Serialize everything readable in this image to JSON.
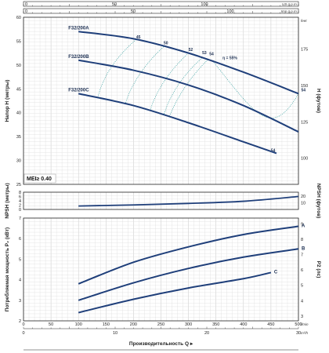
{
  "chart_data": [
    {
      "type": "line",
      "panel": "head",
      "ylabel": "Напор H (метры)",
      "ylabel2": "H (футов)",
      "xlim": [
        0,
        500
      ],
      "ylim": [
        25,
        60
      ],
      "yticks": [
        25,
        30,
        35,
        40,
        45,
        50,
        55,
        60
      ],
      "y2ticks": [
        100,
        125,
        150,
        175
      ],
      "y2unit": "feet",
      "top_axis": {
        "us_gpm_ticks": [
          0,
          50,
          100
        ],
        "us_gpm_unit": "US g.p.m.",
        "imp_gpm_ticks": [
          0,
          50,
          100
        ],
        "imp_gpm_unit": "Imp g.p.m."
      },
      "annotation": "MEI≥ 0.40",
      "series": [
        {
          "name": "F32/200A",
          "x": [
            100,
            200,
            300,
            400,
            500
          ],
          "y": [
            57,
            55.5,
            52.5,
            48.5,
            44
          ]
        },
        {
          "name": "F32/200B",
          "x": [
            100,
            200,
            300,
            400,
            500
          ],
          "y": [
            51,
            48.9,
            45.8,
            41.5,
            36
          ]
        },
        {
          "name": "F32/200C",
          "x": [
            100,
            200,
            300,
            400,
            460
          ],
          "y": [
            44,
            41.5,
            37.9,
            33.9,
            31.5
          ]
        }
      ],
      "efficiency_labels": [
        "45",
        "50",
        "52",
        "53",
        "54",
        "η = 55%",
        "54",
        "54"
      ]
    },
    {
      "type": "line",
      "panel": "npsh",
      "ylabel": "NPSH (метры)",
      "ylabel2": "NPSH (футов)",
      "xlim": [
        0,
        500
      ],
      "ylim": [
        0,
        8
      ],
      "yticks": [
        0,
        2,
        4,
        6,
        8
      ],
      "y2ticks": [
        10,
        20
      ],
      "series": [
        {
          "name": "",
          "x": [
            100,
            200,
            300,
            400,
            500
          ],
          "y": [
            1.6,
            2.1,
            2.8,
            3.8,
            6.0
          ]
        }
      ]
    },
    {
      "type": "line",
      "panel": "power",
      "ylabel": "Потребляемая мощность P₂ (кВт)",
      "ylabel2": "P2 (лс)",
      "xlabel": "Производительность Q",
      "xunit": "l/min",
      "xunit2": "m³/h",
      "xlim": [
        0,
        500
      ],
      "ylim": [
        2,
        7
      ],
      "xticks": [
        0,
        50,
        100,
        150,
        200,
        250,
        300,
        350,
        400,
        450,
        500
      ],
      "x2ticks": [
        0,
        10,
        20,
        30
      ],
      "yticks": [
        2,
        3,
        4,
        5,
        6,
        7
      ],
      "y2ticks": [
        3,
        4,
        5,
        6,
        7,
        8,
        9
      ],
      "series": [
        {
          "name": "A",
          "x": [
            100,
            200,
            300,
            400,
            500
          ],
          "y": [
            3.8,
            4.85,
            5.6,
            6.2,
            6.6
          ]
        },
        {
          "name": "B",
          "x": [
            100,
            200,
            300,
            400,
            500
          ],
          "y": [
            3.0,
            3.85,
            4.55,
            5.1,
            5.5
          ]
        },
        {
          "name": "C",
          "x": [
            100,
            200,
            300,
            400,
            450
          ],
          "y": [
            2.4,
            3.05,
            3.6,
            4.05,
            4.35
          ]
        }
      ]
    }
  ]
}
